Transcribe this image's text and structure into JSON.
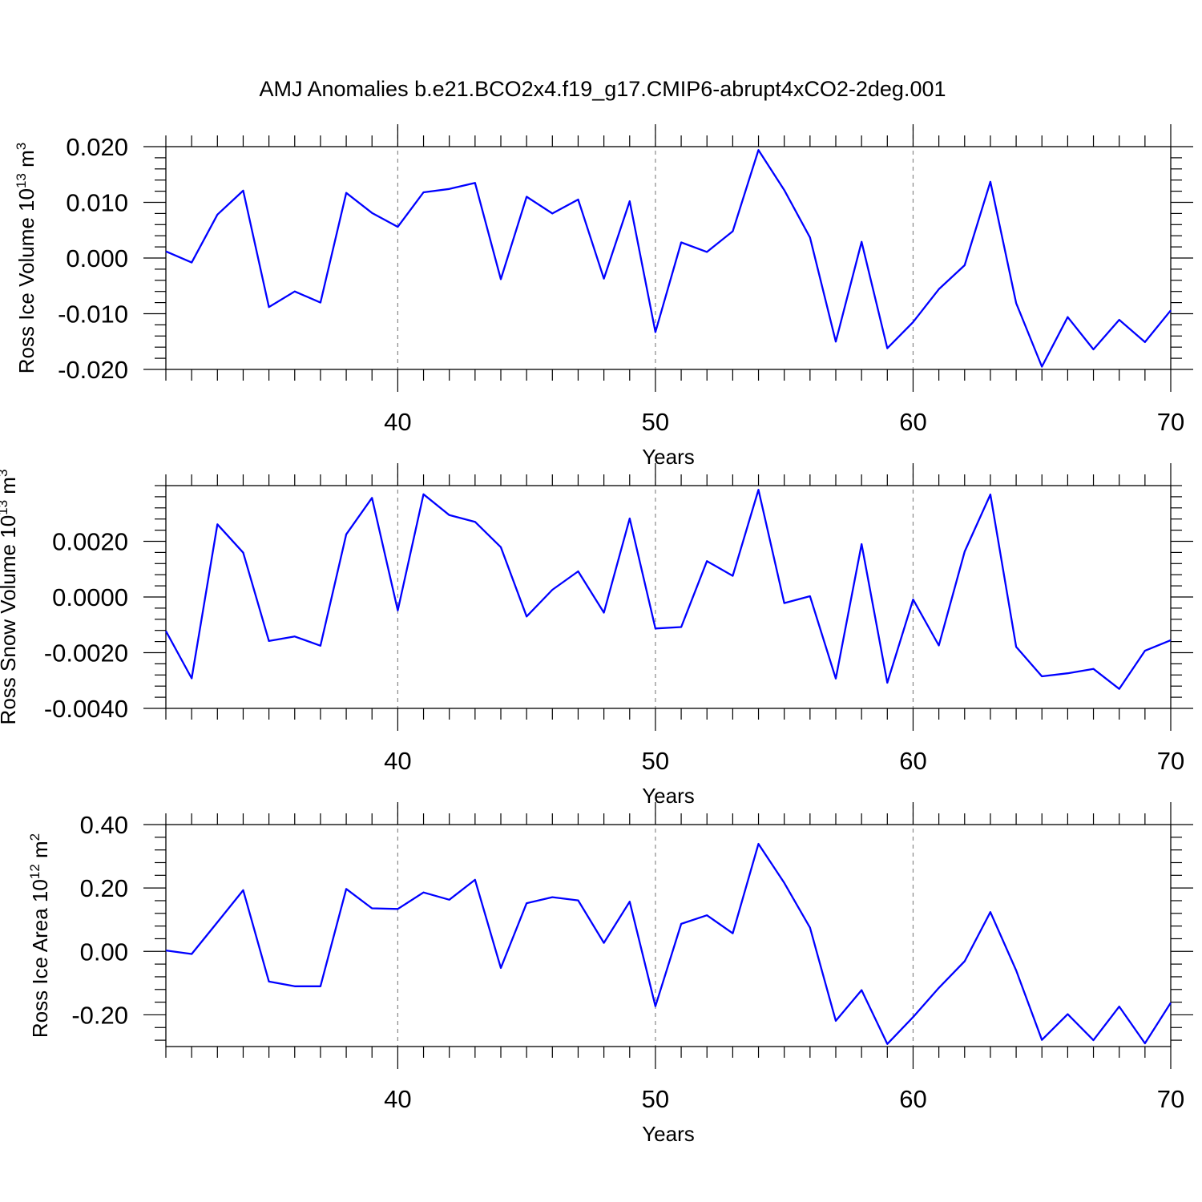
{
  "figure": {
    "title": "AMJ Anomalies b.e21.BCO2x4.f19_g17.CMIP6-abrupt4xCO2-2deg.001"
  },
  "chart_data": [
    {
      "type": "line",
      "xlabel": "Years",
      "ylabel_base": "Ross Ice Volume 10",
      "ylabel_exp": "13",
      "ylabel_unit": " m",
      "ylabel_unit_exp": "3",
      "xlim": [
        31,
        70
      ],
      "ylim": [
        -0.02,
        0.02
      ],
      "x_ticks": [
        40,
        50,
        60,
        70
      ],
      "y_ticks": [
        -0.02,
        -0.01,
        0.0,
        0.01,
        0.02
      ],
      "y_tick_labels": [
        "-0.020",
        "-0.010",
        "0.000",
        "0.010",
        "0.020"
      ],
      "grid_x": [
        40,
        50,
        60
      ],
      "line_color": "#0000ff",
      "x": [
        31,
        32,
        33,
        34,
        35,
        36,
        37,
        38,
        39,
        40,
        41,
        42,
        43,
        44,
        45,
        46,
        47,
        48,
        49,
        50,
        51,
        52,
        53,
        54,
        55,
        56,
        57,
        58,
        59,
        60,
        61,
        62,
        63,
        64,
        65,
        66,
        67,
        68,
        69,
        70
      ],
      "values": [
        0.0012,
        -0.0008,
        0.0078,
        0.0121,
        -0.0088,
        -0.006,
        -0.008,
        0.0117,
        0.0081,
        0.0056,
        0.0118,
        0.0124,
        0.0135,
        -0.0038,
        0.011,
        0.008,
        0.0105,
        -0.0037,
        0.0102,
        -0.0133,
        0.0028,
        0.0011,
        0.0048,
        0.0194,
        0.0122,
        0.0037,
        -0.015,
        0.0029,
        -0.0162,
        -0.0115,
        -0.0056,
        -0.0013,
        0.0137,
        -0.0081,
        -0.0195,
        -0.0106,
        -0.0164,
        -0.0111,
        -0.0151,
        -0.0094
      ]
    },
    {
      "type": "line",
      "xlabel": "Years",
      "ylabel_base": "Ross Snow Volume 10",
      "ylabel_exp": "13",
      "ylabel_unit": " m",
      "ylabel_unit_exp": "3",
      "xlim": [
        31,
        70
      ],
      "ylim": [
        -0.004,
        0.004
      ],
      "x_ticks": [
        40,
        50,
        60,
        70
      ],
      "y_ticks": [
        -0.004,
        -0.002,
        0.0,
        0.002
      ],
      "y_tick_labels": [
        "-0.0040",
        "-0.0020",
        "0.0000",
        "0.0020"
      ],
      "grid_x": [
        40,
        50,
        60
      ],
      "line_color": "#0000ff",
      "x": [
        31,
        32,
        33,
        34,
        35,
        36,
        37,
        38,
        39,
        40,
        41,
        42,
        43,
        44,
        45,
        46,
        47,
        48,
        49,
        50,
        51,
        52,
        53,
        54,
        55,
        56,
        57,
        58,
        59,
        60,
        61,
        62,
        63,
        64,
        65,
        66,
        67,
        68,
        69,
        70
      ],
      "values": [
        -0.00122,
        -0.00292,
        0.00261,
        0.00159,
        -0.00158,
        -0.00142,
        -0.00175,
        0.00225,
        0.00356,
        -0.00048,
        0.00369,
        0.00294,
        0.0027,
        0.00179,
        -0.0007,
        0.00026,
        0.00092,
        -0.00056,
        0.00282,
        -0.00113,
        -0.00108,
        0.00129,
        0.00076,
        0.00385,
        -0.00022,
        3e-05,
        -0.00293,
        0.0019,
        -0.00308,
        -9e-05,
        -0.00174,
        0.00163,
        0.00368,
        -0.00179,
        -0.00285,
        -0.00274,
        -0.00258,
        -0.0033,
        -0.00193,
        -0.00155
      ]
    },
    {
      "type": "line",
      "xlabel": "Years",
      "ylabel_base": "Ross Ice Area 10",
      "ylabel_exp": "12",
      "ylabel_unit": " m",
      "ylabel_unit_exp": "2",
      "xlim": [
        31,
        70
      ],
      "ylim": [
        -0.3,
        0.4
      ],
      "x_ticks": [
        40,
        50,
        60,
        70
      ],
      "y_ticks": [
        -0.2,
        0.0,
        0.2,
        0.4
      ],
      "y_tick_labels": [
        "-0.20",
        "0.00",
        "0.20",
        "0.40"
      ],
      "grid_x": [
        40,
        50,
        60
      ],
      "line_color": "#0000ff",
      "x": [
        31,
        32,
        33,
        34,
        35,
        36,
        37,
        38,
        39,
        40,
        41,
        42,
        43,
        44,
        45,
        46,
        47,
        48,
        49,
        50,
        51,
        52,
        53,
        54,
        55,
        56,
        57,
        58,
        59,
        60,
        61,
        62,
        63,
        64,
        65,
        66,
        67,
        68,
        69,
        70
      ],
      "values": [
        0.003,
        -0.008,
        0.092,
        0.193,
        -0.095,
        -0.11,
        -0.11,
        0.197,
        0.136,
        0.134,
        0.186,
        0.163,
        0.226,
        -0.052,
        0.152,
        0.171,
        0.161,
        0.027,
        0.157,
        -0.173,
        0.087,
        0.114,
        0.057,
        0.339,
        0.216,
        0.075,
        -0.219,
        -0.122,
        -0.292,
        -0.207,
        -0.115,
        -0.031,
        0.124,
        -0.06,
        -0.279,
        -0.198,
        -0.28,
        -0.174,
        -0.29,
        -0.162
      ]
    }
  ]
}
